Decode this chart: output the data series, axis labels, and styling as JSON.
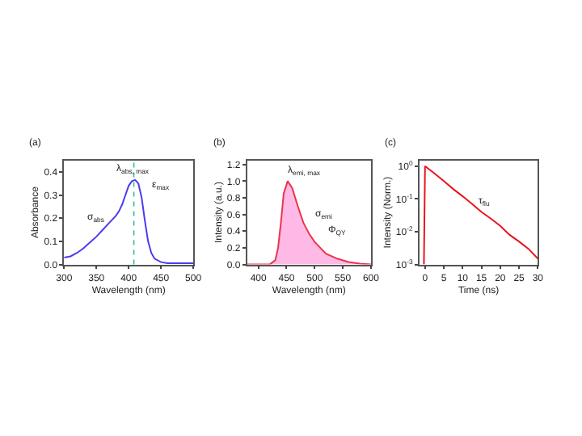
{
  "chart_data": [
    {
      "type": "line",
      "title": "(a)",
      "xlabel": "Wavelength (nm)",
      "ylabel": "Absorbance",
      "x": [
        300,
        310,
        320,
        330,
        340,
        350,
        360,
        370,
        380,
        385,
        390,
        395,
        400,
        405,
        410,
        415,
        420,
        425,
        430,
        435,
        440,
        450,
        460,
        480,
        500
      ],
      "series": [
        {
          "color": "#4b3cf0",
          "values": [
            0.03,
            0.035,
            0.05,
            0.07,
            0.095,
            0.12,
            0.15,
            0.18,
            0.21,
            0.23,
            0.26,
            0.3,
            0.34,
            0.36,
            0.365,
            0.35,
            0.29,
            0.19,
            0.1,
            0.05,
            0.025,
            0.01,
            0.005,
            0.005,
            0.005
          ]
        }
      ],
      "xlim": [
        300,
        500
      ],
      "xticks": [
        300,
        350,
        400,
        450,
        500
      ],
      "ylim": [
        0,
        0.45
      ],
      "yticks": [
        {
          "value": 0,
          "label": "0.0"
        },
        0.1,
        0.2,
        0.3,
        0.4
      ],
      "ref_lines": [
        {
          "axis": "x",
          "value": 408,
          "color": "#2fbf9a",
          "line_style": "dotted"
        }
      ],
      "annotations": [
        "λ$_{abs, max}$",
        "ε$_{max}$",
        "σ$_{abs}$"
      ],
      "marker": "none"
    },
    {
      "type": "area",
      "title": "(b)",
      "xlabel": "Wavelength (nm)",
      "ylabel": "Intensity (a.u.)",
      "x": [
        380,
        420,
        430,
        435,
        440,
        445,
        452,
        460,
        470,
        480,
        490,
        500,
        520,
        540,
        560,
        580,
        600
      ],
      "series": [
        {
          "color": "#e8354a",
          "values": [
            0,
            0,
            0.05,
            0.2,
            0.5,
            0.85,
            1.0,
            0.92,
            0.7,
            0.5,
            0.37,
            0.27,
            0.13,
            0.07,
            0.03,
            0.01,
            0
          ]
        }
      ],
      "xlim": [
        380,
        600
      ],
      "xticks": [
        400,
        450,
        500,
        550,
        600
      ],
      "ylim": [
        0,
        1.25
      ],
      "yticks": [
        {
          "value": 0,
          "label": "0.0"
        },
        0.2,
        0.4,
        0.6,
        0.8,
        {
          "value": 1,
          "label": "1.0"
        },
        1.2
      ],
      "annotations": [
        "λ$_{emi, max}$",
        "σ$_{emi}$",
        "Φ$_{QY}$"
      ],
      "marker": "none"
    },
    {
      "type": "line",
      "title": "(c)",
      "xlabel": "Time (ns)",
      "ylabel": "Intensity (Norm.)",
      "x": [
        -0.3,
        0,
        2.5,
        5,
        7.5,
        10,
        12.5,
        15,
        17.5,
        20,
        22.5,
        25,
        27.5,
        30
      ],
      "series": [
        {
          "color": "#e8141e",
          "values": [
            0.001,
            1.0,
            0.6,
            0.35,
            0.2,
            0.12,
            0.07,
            0.04,
            0.025,
            0.015,
            0.008,
            0.005,
            0.003,
            0.0015
          ]
        }
      ],
      "log": "y",
      "xlim": [
        -1.5,
        30
      ],
      "xticks": [
        0,
        5,
        10,
        15,
        20,
        25,
        30
      ],
      "ylim": [
        0.001,
        1.5
      ],
      "yticks": [
        {
          "value": 0.001,
          "label": "10$^{-3}$"
        },
        {
          "value": 0.01,
          "label": "10$^{-2}$"
        },
        {
          "value": 0.1,
          "label": "10$^{-1}$"
        },
        {
          "value": 1,
          "label": "10$^{0}$"
        }
      ],
      "annotations": [
        "τ$_{flu}$"
      ],
      "marker": "none"
    }
  ]
}
